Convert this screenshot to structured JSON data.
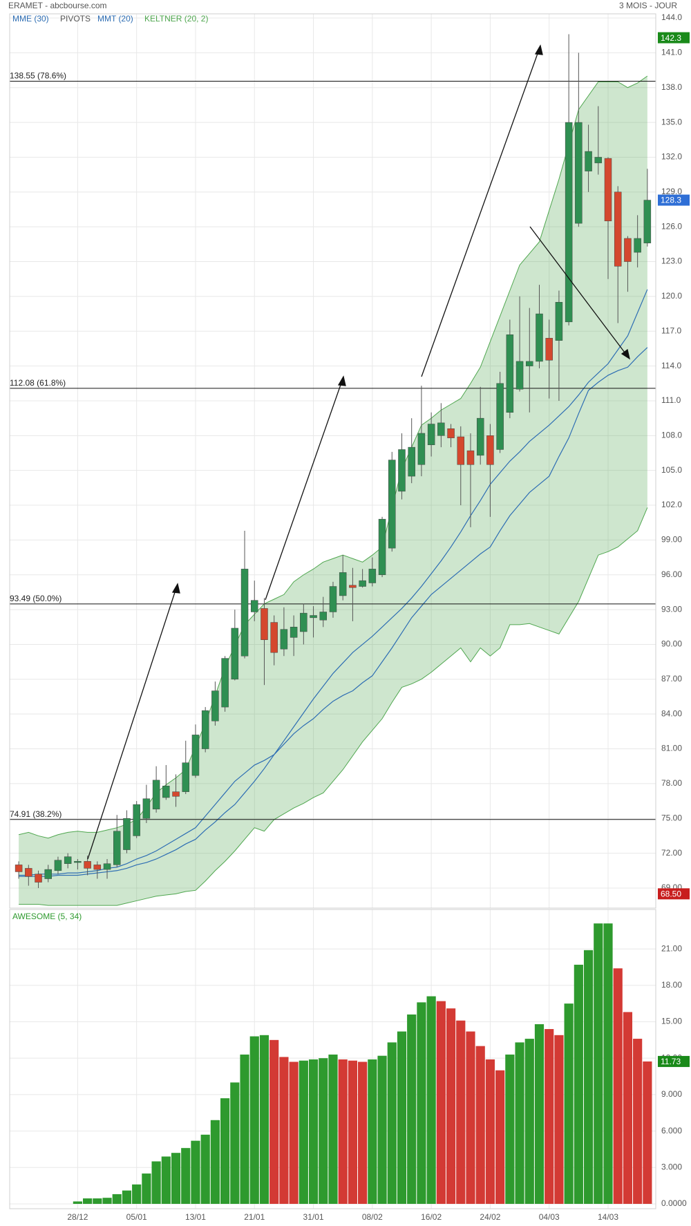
{
  "header": {
    "source": "ERAMET - abcbourse.com",
    "period": "3 MOIS - JOUR"
  },
  "chart_data": [
    {
      "type": "candlestick",
      "ylim": [
        67.27,
        144.36
      ],
      "yticks": [
        {
          "value": 69,
          "label": "69.00"
        },
        {
          "value": 72,
          "label": "72.00"
        },
        {
          "value": 75,
          "label": "75.00"
        },
        {
          "value": 78,
          "label": "78.00"
        },
        {
          "value": 81,
          "label": "81.00"
        },
        {
          "value": 84,
          "label": "84.00"
        },
        {
          "value": 87,
          "label": "87.00"
        },
        {
          "value": 90,
          "label": "90.00"
        },
        {
          "value": 93,
          "label": "93.00"
        },
        {
          "value": 96,
          "label": "96.00"
        },
        {
          "value": 99,
          "label": "99.00"
        },
        {
          "value": 102,
          "label": "102.0"
        },
        {
          "value": 105,
          "label": "105.0"
        },
        {
          "value": 108,
          "label": "108.0"
        },
        {
          "value": 111,
          "label": "111.0"
        },
        {
          "value": 114,
          "label": "114.0"
        },
        {
          "value": 117,
          "label": "117.0"
        },
        {
          "value": 120,
          "label": "120.0"
        },
        {
          "value": 123,
          "label": "123.0"
        },
        {
          "value": 126,
          "label": "126.0"
        },
        {
          "value": 129,
          "label": "129.0"
        },
        {
          "value": 132,
          "label": "132.0"
        },
        {
          "value": 135,
          "label": "135.0"
        },
        {
          "value": 138,
          "label": "138.0"
        },
        {
          "value": 141,
          "label": "141.0"
        },
        {
          "value": 144,
          "label": "144.0"
        }
      ],
      "grid": true,
      "up_color": "#2f8f52",
      "down_color": "#d4482e",
      "ohlc": [
        [
          71.0,
          71.3,
          69.8,
          70.4
        ],
        [
          70.7,
          71.0,
          69.2,
          70.0
        ],
        [
          70.2,
          70.5,
          69.0,
          69.5
        ],
        [
          69.8,
          71.0,
          69.5,
          70.6
        ],
        [
          70.5,
          71.7,
          70.2,
          71.4
        ],
        [
          71.1,
          72.0,
          70.7,
          71.7
        ],
        [
          71.2,
          71.5,
          70.6,
          71.3
        ],
        [
          71.3,
          71.8,
          70.1,
          70.7
        ],
        [
          71.0,
          71.3,
          69.8,
          70.6
        ],
        [
          70.6,
          71.5,
          69.8,
          71.1
        ],
        [
          71.0,
          75.3,
          70.8,
          73.9
        ],
        [
          72.3,
          75.7,
          72.0,
          75.0
        ],
        [
          73.5,
          76.5,
          73.3,
          76.2
        ],
        [
          75.0,
          77.9,
          74.6,
          76.7
        ],
        [
          75.8,
          79.5,
          75.5,
          78.3
        ],
        [
          76.8,
          79.6,
          76.6,
          77.8
        ],
        [
          77.3,
          78.8,
          76.0,
          76.9
        ],
        [
          77.3,
          81.7,
          77.1,
          79.8
        ],
        [
          78.7,
          83.1,
          78.5,
          82.2
        ],
        [
          81.0,
          84.6,
          80.7,
          84.3
        ],
        [
          83.4,
          86.8,
          83.0,
          86.0
        ],
        [
          84.6,
          89.0,
          84.2,
          88.8
        ],
        [
          87.0,
          93.0,
          86.9,
          91.4
        ],
        [
          89.0,
          99.8,
          88.8,
          96.5
        ],
        [
          92.8,
          95.5,
          92.0,
          93.8
        ],
        [
          93.1,
          94.0,
          86.5,
          90.4
        ],
        [
          91.9,
          92.5,
          88.2,
          89.3
        ],
        [
          89.6,
          93.2,
          89.0,
          91.3
        ],
        [
          90.6,
          92.5,
          89.0,
          91.5
        ],
        [
          91.1,
          93.5,
          90.0,
          92.7
        ],
        [
          92.3,
          93.3,
          90.6,
          92.5
        ],
        [
          92.1,
          94.1,
          91.5,
          92.8
        ],
        [
          92.8,
          95.4,
          92.3,
          95.0
        ],
        [
          94.2,
          97.7,
          93.8,
          96.2
        ],
        [
          95.1,
          96.6,
          92.0,
          94.9
        ],
        [
          95.0,
          96.5,
          94.9,
          95.5
        ],
        [
          95.3,
          97.5,
          95.0,
          96.5
        ],
        [
          96.0,
          101.0,
          95.8,
          100.8
        ],
        [
          98.3,
          106.6,
          98.0,
          105.9
        ],
        [
          103.2,
          108.2,
          102.5,
          106.8
        ],
        [
          104.5,
          109.5,
          103.9,
          107.0
        ],
        [
          105.5,
          112.3,
          104.5,
          108.2
        ],
        [
          107.2,
          110.0,
          106.2,
          109.0
        ],
        [
          108.0,
          110.8,
          107.0,
          109.1
        ],
        [
          108.6,
          109.0,
          107.0,
          107.8
        ],
        [
          107.9,
          108.8,
          102.0,
          105.5
        ],
        [
          106.7,
          108.2,
          100.1,
          105.5
        ],
        [
          106.3,
          112.2,
          105.5,
          109.5
        ],
        [
          108.0,
          109.0,
          101.0,
          105.5
        ],
        [
          106.8,
          113.5,
          106.5,
          112.5
        ],
        [
          110.0,
          118.0,
          109.5,
          116.7
        ],
        [
          112.0,
          120.0,
          111.8,
          114.4
        ],
        [
          114.0,
          119.0,
          110.0,
          114.4
        ],
        [
          114.4,
          121.0,
          113.8,
          118.5
        ],
        [
          116.4,
          118.0,
          111.2,
          114.5
        ],
        [
          116.2,
          120.5,
          111.0,
          119.5
        ],
        [
          117.8,
          142.6,
          117.5,
          135.0
        ],
        [
          126.3,
          141.0,
          126.0,
          135.0
        ],
        [
          130.8,
          134.8,
          129.0,
          132.5
        ],
        [
          131.5,
          136.4,
          130.5,
          132.0
        ],
        [
          131.9,
          132.0,
          121.5,
          126.5
        ],
        [
          129.0,
          129.5,
          117.7,
          122.6
        ],
        [
          125.0,
          125.2,
          120.4,
          123.0
        ],
        [
          123.8,
          127.0,
          122.5,
          125.0
        ],
        [
          124.6,
          131.0,
          124.3,
          128.3
        ]
      ],
      "series": [
        {
          "name": "MME (30)",
          "color": "#2d6db3",
          "values": [
            70.0,
            70.0,
            70.0,
            70.0,
            70.1,
            70.1,
            70.1,
            70.2,
            70.3,
            70.4,
            70.5,
            70.7,
            71.0,
            71.2,
            71.5,
            71.9,
            72.3,
            72.8,
            73.2,
            74.0,
            74.7,
            75.5,
            76.2,
            77.2,
            78.2,
            79.3,
            80.5,
            81.4,
            82.3,
            83.0,
            83.6,
            84.4,
            85.1,
            85.6,
            86.0,
            86.7,
            87.3,
            88.5,
            89.7,
            91.0,
            92.3,
            93.3,
            94.3,
            95.0,
            95.7,
            96.4,
            97.1,
            97.8,
            98.4,
            99.8,
            101.1,
            102.1,
            103.1,
            103.8,
            104.5,
            106.2,
            107.8,
            109.9,
            111.9,
            112.6,
            113.2,
            113.6,
            113.9,
            114.8,
            115.6
          ]
        },
        {
          "name": "MMT (20)",
          "color": "#2d6db3",
          "values": [
            70.1,
            70.1,
            70.2,
            70.2,
            70.2,
            70.3,
            70.3,
            70.4,
            70.5,
            70.7,
            70.8,
            71.1,
            71.5,
            71.8,
            72.2,
            72.7,
            73.2,
            73.7,
            74.2,
            75.2,
            76.2,
            77.2,
            78.2,
            78.9,
            79.6,
            80.0,
            80.5,
            81.7,
            82.9,
            84.1,
            85.3,
            86.4,
            87.5,
            88.4,
            89.3,
            90.0,
            90.7,
            91.5,
            92.3,
            93.1,
            94.0,
            95.0,
            96.1,
            97.2,
            98.4,
            99.7,
            101.1,
            102.4,
            103.8,
            104.8,
            105.8,
            106.6,
            107.5,
            108.2,
            108.9,
            109.7,
            110.5,
            111.5,
            112.6,
            113.4,
            114.2,
            115.4,
            116.6,
            118.6,
            120.6
          ]
        }
      ],
      "pivots": {
        "name": "PIVOTS",
        "color": "#555555"
      },
      "band": {
        "name": "KELTNER (20, 2)",
        "color": "#4ea64e",
        "upper": [
          73.6,
          73.8,
          73.5,
          73.3,
          73.6,
          73.8,
          73.9,
          73.8,
          73.8,
          74.0,
          74.2,
          74.5,
          74.9,
          76.0,
          77.2,
          77.9,
          78.5,
          79.2,
          81.2,
          83.2,
          85.6,
          88.0,
          89.9,
          91.7,
          92.6,
          93.5,
          93.9,
          94.3,
          95.4,
          96.0,
          96.5,
          97.1,
          97.4,
          97.7,
          97.4,
          97.1,
          97.7,
          98.4,
          101.8,
          105.1,
          107.0,
          108.9,
          109.5,
          110.2,
          110.7,
          111.2,
          112.5,
          113.9,
          116.1,
          118.3,
          120.5,
          122.7,
          123.7,
          124.7,
          127.4,
          130.1,
          133.1,
          136.1,
          137.3,
          138.5,
          138.5,
          138.5,
          138.0,
          138.4,
          139.0
        ],
        "lower": [
          67.6,
          67.6,
          67.6,
          67.5,
          67.5,
          67.5,
          67.5,
          67.5,
          67.5,
          67.5,
          67.5,
          67.7,
          67.9,
          68.1,
          68.3,
          68.4,
          68.5,
          68.7,
          68.8,
          69.6,
          70.5,
          71.3,
          72.2,
          73.2,
          74.2,
          73.9,
          74.9,
          75.4,
          75.9,
          76.3,
          76.8,
          77.2,
          78.2,
          79.2,
          80.4,
          81.6,
          82.6,
          83.6,
          85.0,
          86.3,
          86.6,
          87.0,
          87.6,
          88.3,
          89.0,
          89.7,
          88.5,
          89.7,
          89.0,
          89.7,
          91.7,
          91.7,
          91.8,
          91.5,
          91.2,
          90.9,
          92.3,
          93.7,
          95.7,
          97.7,
          98.0,
          98.4,
          99.1,
          99.8,
          101.8
        ]
      },
      "levels": [
        {
          "value": 138.55,
          "label": "138.55  (78.6%)"
        },
        {
          "value": 112.08,
          "label": "112.08  (61.8%)"
        },
        {
          "value": 93.49,
          "label": "93.49  (50.0%)"
        },
        {
          "value": 74.91,
          "label": "74.91  (38.2%)"
        }
      ],
      "markers": [
        {
          "value": 142.3,
          "color": "#1a8a1a"
        },
        {
          "value": 128.3,
          "color": "#2f6fd6"
        },
        {
          "value": 68.5,
          "label": "68.50",
          "color": "#c81e1e"
        }
      ]
    },
    {
      "type": "bar",
      "title": "AWESOME (5, 34)",
      "categories": [
        null,
        null,
        null,
        null,
        null,
        null,
        "28/12",
        null,
        null,
        null,
        null,
        null,
        "05/01",
        null,
        null,
        null,
        null,
        null,
        "13/01",
        null,
        null,
        null,
        null,
        null,
        "21/01",
        null,
        null,
        null,
        null,
        null,
        "31/01",
        null,
        null,
        null,
        null,
        null,
        "08/02",
        null,
        null,
        null,
        null,
        null,
        "16/02",
        null,
        null,
        null,
        null,
        null,
        "24/02",
        null,
        null,
        null,
        null,
        null,
        "04/03",
        null,
        null,
        null,
        null,
        null,
        "14/03",
        null,
        null,
        null,
        null
      ],
      "values": [
        null,
        null,
        null,
        null,
        null,
        null,
        0.2,
        0.45,
        0.45,
        0.5,
        0.8,
        1.1,
        1.6,
        2.5,
        3.5,
        3.9,
        4.2,
        4.6,
        5.2,
        5.7,
        6.9,
        8.7,
        10.0,
        12.3,
        13.8,
        13.9,
        13.5,
        12.1,
        11.7,
        11.8,
        11.9,
        12.0,
        12.3,
        11.9,
        11.8,
        11.7,
        11.9,
        12.2,
        13.3,
        14.2,
        15.6,
        16.6,
        17.1,
        16.7,
        16.1,
        15.1,
        14.2,
        13.0,
        11.9,
        11.0,
        12.3,
        13.3,
        13.6,
        14.8,
        14.4,
        13.9,
        16.5,
        19.7,
        20.9,
        23.1,
        23.1,
        19.4,
        15.8,
        13.6,
        11.73
      ],
      "up_color": "#2e9a2e",
      "down_color": "#d33a34",
      "ylim": [
        -0.4,
        24.25
      ],
      "yticks": [
        {
          "value": 0,
          "label": "0.0000"
        },
        {
          "value": 3,
          "label": "3.000"
        },
        {
          "value": 6,
          "label": "6.000"
        },
        {
          "value": 9,
          "label": "9.000"
        },
        {
          "value": 12,
          "label": "12.00"
        },
        {
          "value": 15,
          "label": "15.00"
        },
        {
          "value": 18,
          "label": "18.00"
        },
        {
          "value": 21,
          "label": "21.00"
        }
      ],
      "grid": true,
      "markers": [
        {
          "value": 11.73,
          "color": "#1a8a1a"
        }
      ]
    }
  ]
}
